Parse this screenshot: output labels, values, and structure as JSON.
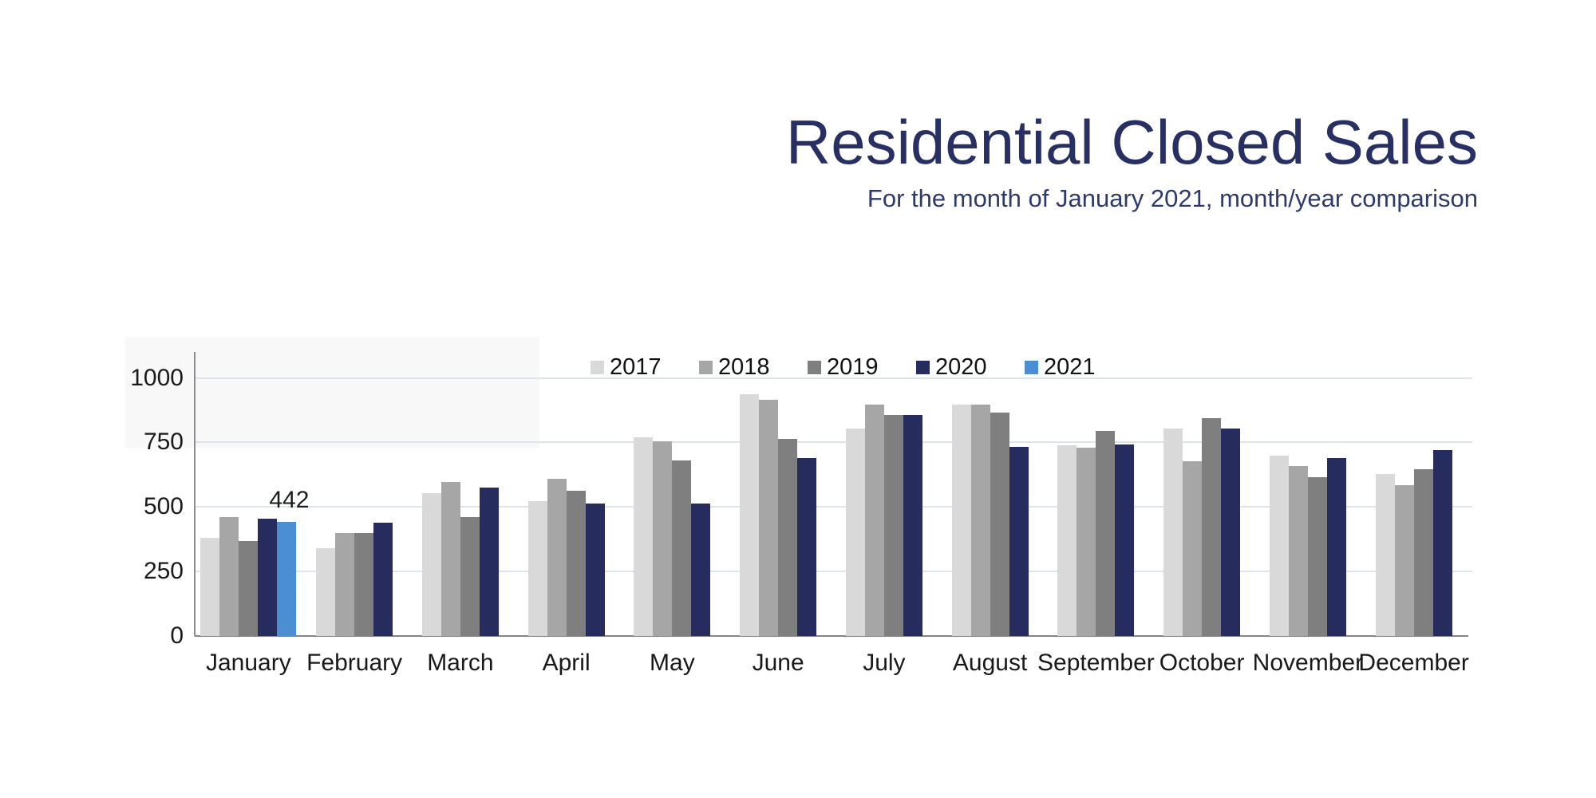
{
  "header": {
    "title": "Residential Closed Sales",
    "subtitle": "For the month of January 2021, month/year comparison",
    "title_color": "#272f63",
    "subtitle_color": "#2e3a6c"
  },
  "chart_data": {
    "type": "bar",
    "title": "Residential Closed Sales",
    "subtitle": "For the month of January 2021, month/year comparison",
    "categories": [
      "January",
      "February",
      "March",
      "April",
      "May",
      "June",
      "July",
      "August",
      "September",
      "October",
      "November",
      "December"
    ],
    "series": [
      {
        "name": "2017",
        "color": "#d9d9d9",
        "values": [
          380,
          340,
          553,
          523,
          770,
          938,
          803,
          896,
          740,
          804,
          699,
          627
        ]
      },
      {
        "name": "2018",
        "color": "#a6a6a6",
        "values": [
          462,
          400,
          598,
          608,
          753,
          916,
          896,
          896,
          729,
          678,
          657,
          584
        ]
      },
      {
        "name": "2019",
        "color": "#7f7f7f",
        "values": [
          368,
          400,
          460,
          564,
          680,
          762,
          857,
          866,
          794,
          845,
          615,
          647
        ]
      },
      {
        "name": "2020",
        "color": "#262c5e",
        "values": [
          453,
          438,
          576,
          512,
          512,
          690,
          857,
          732,
          742,
          804,
          689,
          720
        ]
      },
      {
        "name": "2021",
        "color": "#4b8fd2",
        "values": [
          442,
          null,
          null,
          null,
          null,
          null,
          null,
          null,
          null,
          null,
          null,
          null
        ]
      }
    ],
    "annotation": {
      "text": "442",
      "category": "January",
      "series": "2021"
    },
    "yticks": [
      0,
      250,
      500,
      750,
      1000
    ],
    "ylim": [
      0,
      1100
    ],
    "grid": true,
    "legend_position": "top",
    "gridline_color": "#dce4f0",
    "axis_color": "#8c8c8c",
    "tick_label_color": "#1a1a1a"
  }
}
